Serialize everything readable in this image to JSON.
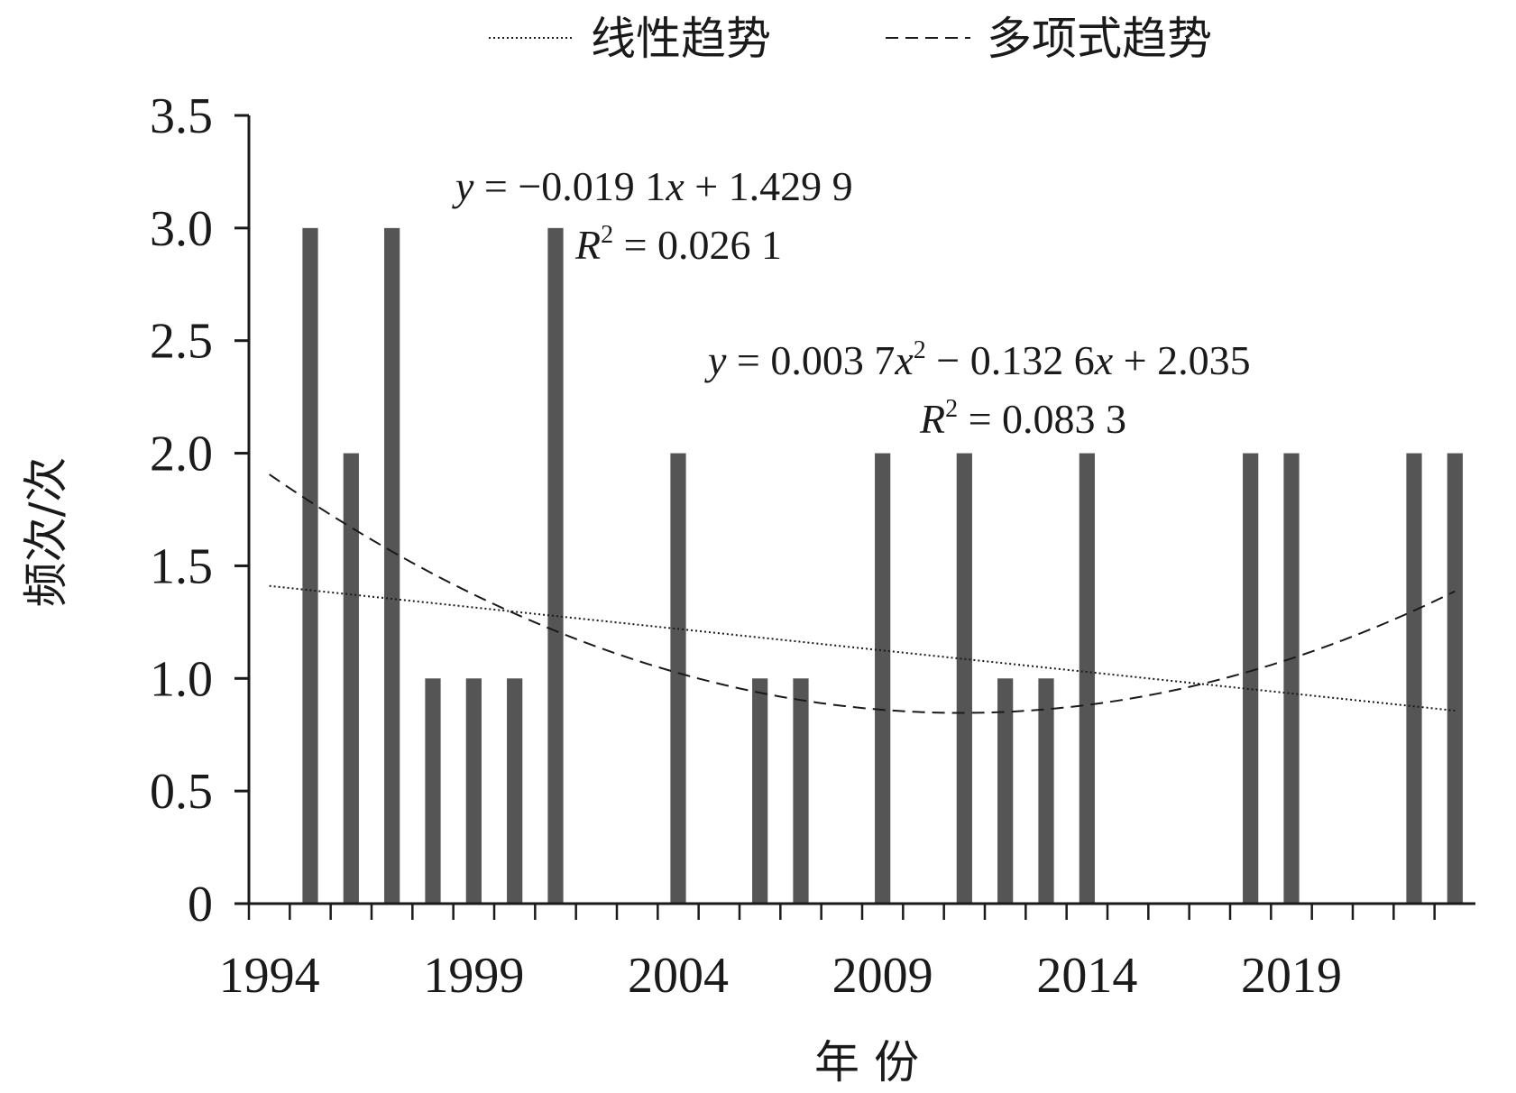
{
  "chart_data": {
    "type": "bar",
    "xlabel": "年 份",
    "ylabel": "频次/次",
    "ylim": [
      0,
      3.5
    ],
    "xlim": [
      1993.5,
      2023.5
    ],
    "yticks": [
      0,
      0.5,
      1.0,
      1.5,
      2.0,
      2.5,
      3.0,
      3.5
    ],
    "ytick_labels": [
      "0",
      "0.5",
      "1.0",
      "1.5",
      "2.0",
      "2.5",
      "3.0",
      "3.5"
    ],
    "xtick_labels": [
      "1994",
      "1999",
      "2004",
      "2009",
      "2014",
      "2019"
    ],
    "xtick_label_years": [
      1994,
      1999,
      2004,
      2009,
      2014,
      2019
    ],
    "grid": false,
    "bar_color": "#555555",
    "x": [
      1995,
      1996,
      1997,
      1998,
      1999,
      2000,
      2001,
      2004,
      2006,
      2007,
      2009,
      2011,
      2012,
      2013,
      2014,
      2018,
      2019,
      2022,
      2023
    ],
    "values": [
      3,
      2,
      3,
      1,
      1,
      1,
      3,
      2,
      1,
      1,
      2,
      2,
      1,
      1,
      2,
      2,
      2,
      2,
      2
    ],
    "legend": {
      "placement": "top",
      "entries": [
        {
          "label": "线性趋势",
          "style": "dotted"
        },
        {
          "label": "多项式趋势",
          "style": "dashed"
        }
      ]
    },
    "trendlines": [
      {
        "name": "线性趋势",
        "kind": "linear",
        "coefficients": {
          "a": -0.0191,
          "b": 1.4299
        },
        "equation_parts": [
          "y",
          " = −0.019 1",
          "x",
          " + 1.429 9"
        ],
        "r2_parts": [
          "R",
          "2",
          " = 0.026 1"
        ]
      },
      {
        "name": "多项式趋势",
        "kind": "polynomial",
        "coefficients": {
          "a": 0.0037,
          "b": -0.1326,
          "c": 2.035
        },
        "equation_parts": [
          "y",
          " = 0.003 7",
          "x",
          "2",
          " − 0.132 6",
          "x",
          " + 2.035"
        ],
        "r2_parts": [
          "R",
          "2",
          " = 0.083 3"
        ]
      }
    ]
  }
}
